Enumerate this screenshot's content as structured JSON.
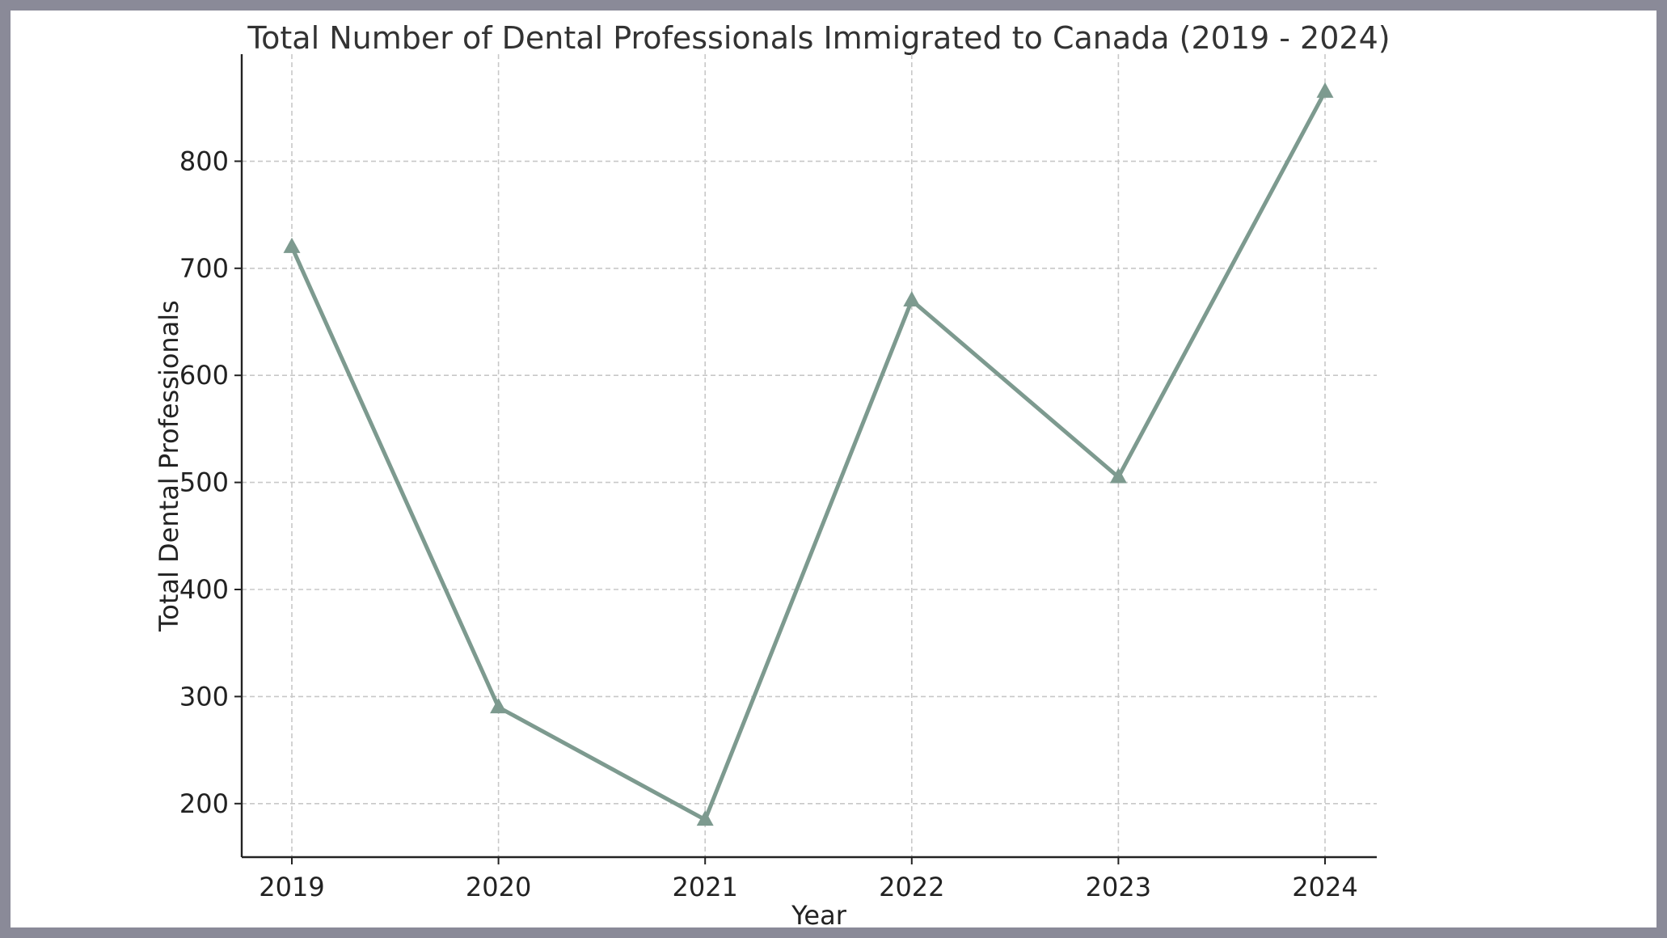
{
  "chart_data": {
    "type": "line",
    "title": "Total Number of Dental Professionals Immigrated to Canada (2019 - 2024)",
    "xlabel": "Year",
    "ylabel": "Total Dental Professionals",
    "categories": [
      "2019",
      "2020",
      "2021",
      "2022",
      "2023",
      "2024"
    ],
    "series": [
      {
        "values": [
          720,
          290,
          185,
          670,
          505,
          865
        ],
        "color": "#7d9a8f",
        "marker": "triangle"
      }
    ],
    "ylim": [
      150,
      900
    ],
    "yticks": [
      200,
      300,
      400,
      500,
      600,
      700,
      800
    ],
    "grid": true,
    "legend": "none"
  }
}
